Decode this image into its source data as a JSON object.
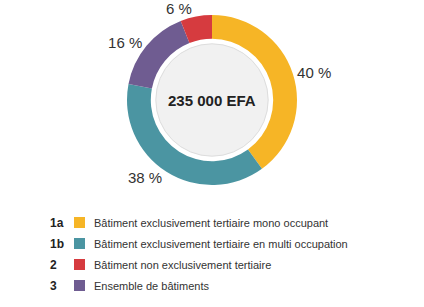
{
  "chart_data": {
    "type": "pie",
    "annotations": [
      "235 000 EFA"
    ],
    "codes": [
      "1a",
      "1b",
      "3",
      "2"
    ],
    "categories": [
      "Bâtiment exclusivement tertiaire mono occupant",
      "Bâtiment exclusivement tertiaire en multi occupation",
      "Ensemble de bâtiments",
      "Bâtiment non exclusivement tertiaire"
    ],
    "values": [
      40,
      38,
      16,
      6
    ],
    "value_labels": [
      "40 %",
      "38 %",
      "16 %",
      "6 %"
    ],
    "colors": [
      "#f6b526",
      "#4b95a2",
      "#6f5c91",
      "#d63b3f"
    ],
    "data_labels": true,
    "legend": "bottom"
  }
}
